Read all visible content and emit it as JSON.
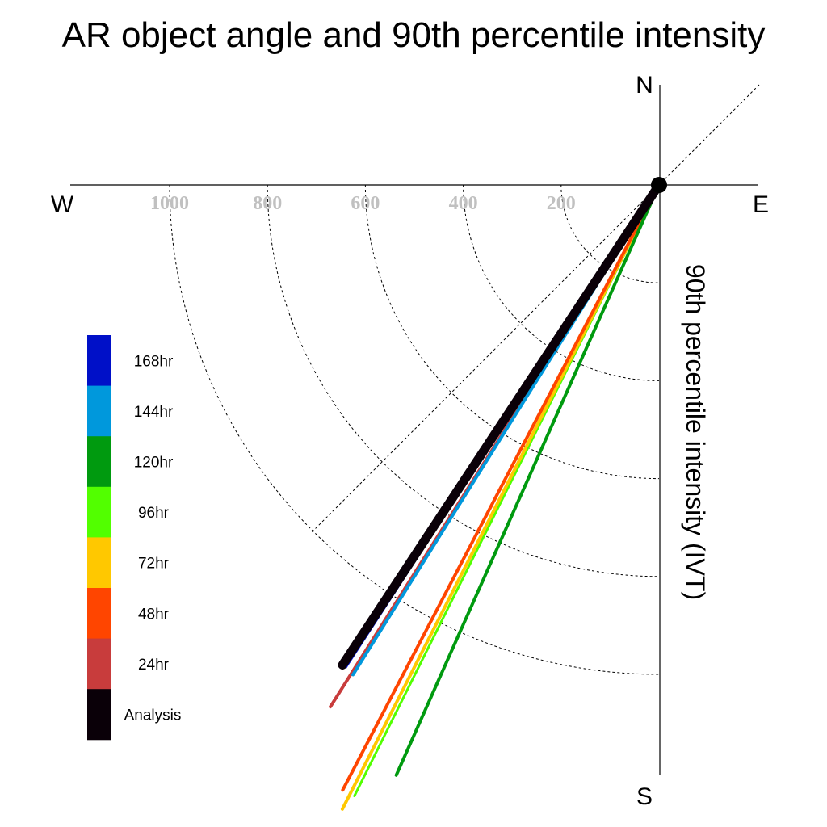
{
  "chart_data": {
    "type": "polar-vector",
    "title": "AR object angle and 90th percentile intensity",
    "radial_label": "90th percentile intensity (IVT)",
    "directions": {
      "north": "N",
      "east": "E",
      "south": "S",
      "west": "W"
    },
    "rings": [
      200,
      400,
      600,
      800,
      1000
    ],
    "rmax": 1200,
    "series": [
      {
        "name": "Analysis",
        "color": "#0a0008",
        "angle_deg": 213.4,
        "intensity": 1175,
        "width": 11
      },
      {
        "name": "24hr",
        "color": "#c83c3c",
        "angle_deg": 212.2,
        "intensity": 1260,
        "width": 4
      },
      {
        "name": "48hr",
        "color": "#ff4500",
        "angle_deg": 207.6,
        "intensity": 1395,
        "width": 4
      },
      {
        "name": "72hr",
        "color": "#ffc800",
        "angle_deg": 206.9,
        "intensity": 1430,
        "width": 4
      },
      {
        "name": "96hr",
        "color": "#52ff00",
        "angle_deg": 206.5,
        "intensity": 1395,
        "width": 3
      },
      {
        "name": "120hr",
        "color": "#009a0f",
        "angle_deg": 204.0,
        "intensity": 1320,
        "width": 4
      },
      {
        "name": "144hr",
        "color": "#0098dc",
        "angle_deg": 212.0,
        "intensity": 1180,
        "width": 4
      },
      {
        "name": "168hr",
        "color": "#0010c8",
        "angle_deg": 213.0,
        "intensity": 1175,
        "width": 3
      }
    ],
    "legend": [
      "168hr",
      "144hr",
      "120hr",
      "96hr",
      "72hr",
      "48hr",
      "24hr",
      "Analysis"
    ],
    "legend_placement": "left"
  }
}
